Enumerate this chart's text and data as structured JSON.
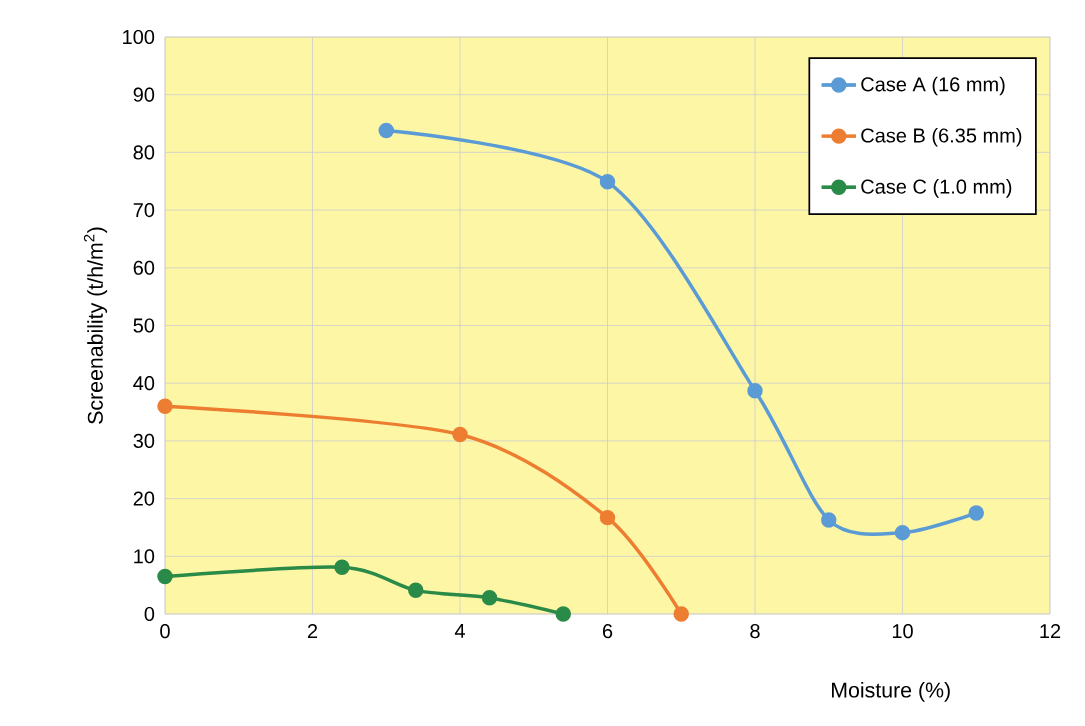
{
  "chart_data": {
    "type": "line",
    "xlabel": "Moisture (%)",
    "ylabel": "Screenability (t/h/m$^{2}$)",
    "xlim": [
      0,
      12
    ],
    "xticks": [
      0,
      2,
      4,
      6,
      8,
      10,
      12
    ],
    "ylim": [
      0,
      100
    ],
    "yticks": [
      0,
      10,
      20,
      30,
      40,
      50,
      60,
      70,
      80,
      90,
      100
    ],
    "grid": true,
    "legend": "top right",
    "marker": "circle",
    "line_style": "solid",
    "series": [
      {
        "name": "Case A (16 mm)",
        "color": "#5b9bd5",
        "x": [
          3,
          6,
          8,
          9,
          10,
          11
        ],
        "values": [
          83.8,
          74.9,
          38.7,
          16.3,
          14.1,
          17.5
        ]
      },
      {
        "name": "Case B  (6.35 mm)",
        "color": "#ed7d31",
        "x": [
          0,
          4,
          6,
          7
        ],
        "values": [
          36.0,
          31.1,
          16.7,
          0
        ]
      },
      {
        "name": "Case C (1.0 mm)",
        "color": "#2a8a47",
        "x": [
          0,
          2.4,
          3.4,
          4.4,
          5.4
        ],
        "values": [
          6.5,
          8.1,
          4.1,
          2.8,
          0
        ]
      }
    ]
  }
}
